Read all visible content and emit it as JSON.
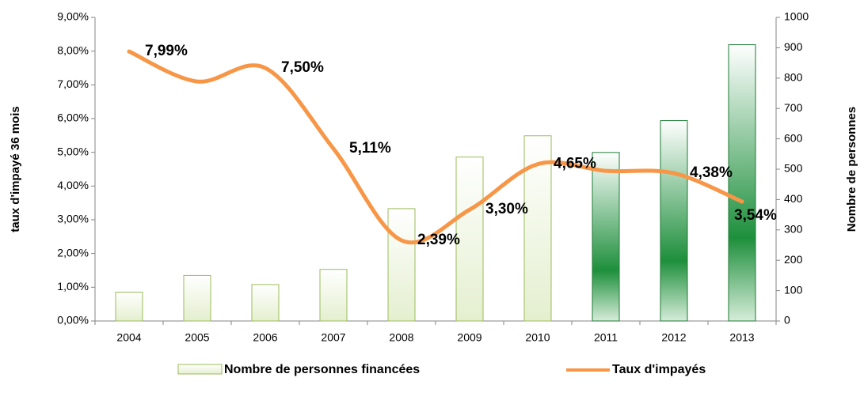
{
  "chart_data": {
    "type": "bar_line",
    "categories": [
      "2004",
      "2005",
      "2006",
      "2007",
      "2008",
      "2009",
      "2010",
      "2011",
      "2012",
      "2013"
    ],
    "y_label": "taux d'impayé 36 mois",
    "y2_label": "Nombre de personnes",
    "ylim": [
      0,
      9
    ],
    "yticks": [
      {
        "value": 0,
        "label": "0,00%"
      },
      {
        "value": 1,
        "label": "1,00%"
      },
      {
        "value": 2,
        "label": "2,00%"
      },
      {
        "value": 3,
        "label": "3,00%"
      },
      {
        "value": 4,
        "label": "4,00%"
      },
      {
        "value": 5,
        "label": "5,00%"
      },
      {
        "value": 6,
        "label": "6,00%"
      },
      {
        "value": 7,
        "label": "7,00%"
      },
      {
        "value": 8,
        "label": "8,00%"
      },
      {
        "value": 9,
        "label": "9,00%"
      }
    ],
    "y2lim": [
      0,
      1000
    ],
    "y2ticks": [
      0,
      100,
      200,
      300,
      400,
      500,
      600,
      700,
      800,
      900,
      1000
    ],
    "series": [
      {
        "name": "Nombre de personnes financées",
        "type": "bar",
        "axis": "y2",
        "color": "#9bbb59",
        "colors": [
          "#e4efcf",
          "#e4efcf",
          "#e4efcf",
          "#e4efcf",
          "#e4efcf",
          "#e4efcf",
          "#e4efcf",
          "#1e8f3c",
          "#1e8f3c",
          "#1e8f3c"
        ],
        "values": [
          95,
          150,
          120,
          170,
          370,
          540,
          610,
          555,
          660,
          910
        ]
      },
      {
        "name": "Taux d'impayés",
        "type": "line",
        "axis": "y",
        "color": "#f79646",
        "values": [
          7.99,
          7.1,
          7.5,
          5.11,
          2.39,
          3.3,
          4.65,
          4.45,
          4.38,
          3.54
        ],
        "value_labels": [
          "7,99%",
          null,
          "7,50%",
          "5,11%",
          "2,39%",
          "3,30%",
          "4,65%",
          null,
          "4,38%",
          "3,54%"
        ]
      }
    ]
  }
}
